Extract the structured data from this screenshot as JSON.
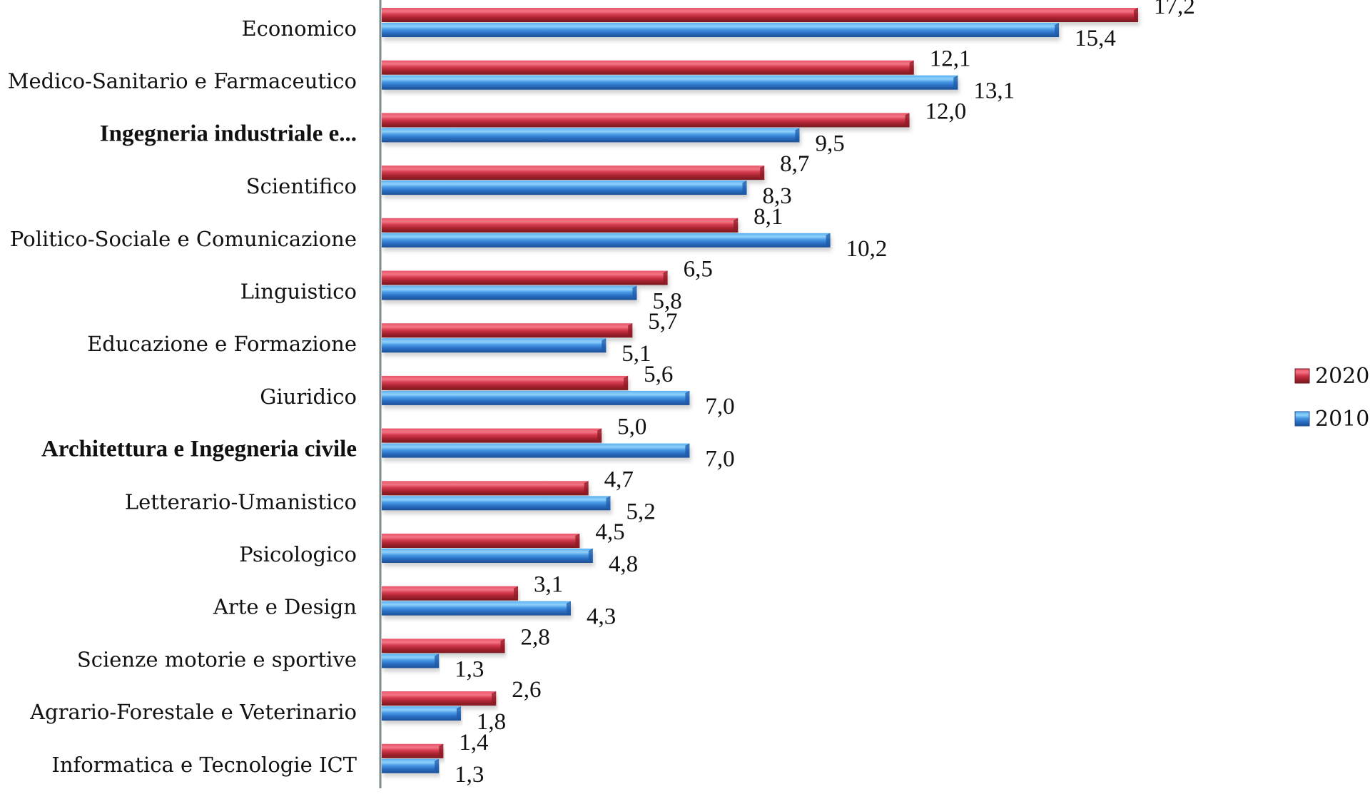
{
  "chart_data": {
    "type": "bar",
    "orientation": "horizontal",
    "title": "",
    "xlabel": "",
    "ylabel": "",
    "xlim": [
      0,
      17.2
    ],
    "grid": false,
    "legend_position": "right",
    "categories": [
      "Economico",
      "Medico-Sanitario e Farmaceutico",
      "Ingegneria industriale e...",
      "Scientifico",
      "Politico-Sociale e Comunicazione",
      "Linguistico",
      "Educazione e Formazione",
      "Giuridico",
      "Architettura e Ingegneria civile",
      "Letterario-Umanistico",
      "Psicologico",
      "Arte e Design",
      "Scienze motorie e sportive",
      "Agrario-Forestale e Veterinario",
      "Informatica e Tecnologie ICT"
    ],
    "bold_categories": [
      "Ingegneria industriale e...",
      "Architettura e Ingegneria civile"
    ],
    "series": [
      {
        "name": "2020",
        "color": "#c0283a",
        "values": [
          17.2,
          12.1,
          12.0,
          8.7,
          8.1,
          6.5,
          5.7,
          5.6,
          5.0,
          4.7,
          4.5,
          3.1,
          2.8,
          2.6,
          1.4
        ],
        "labels": [
          "17,2",
          "12,1",
          "12,0",
          "8,7",
          "8,1",
          "6,5",
          "5,7",
          "5,6",
          "5,0",
          "4,7",
          "4,5",
          "3,1",
          "2,8",
          "2,6",
          "1,4"
        ]
      },
      {
        "name": "2010",
        "color": "#2f7fd6",
        "values": [
          15.4,
          13.1,
          9.5,
          8.3,
          10.2,
          5.8,
          5.1,
          7.0,
          7.0,
          5.2,
          4.8,
          4.3,
          1.3,
          1.8,
          1.3
        ],
        "labels": [
          "15,4",
          "13,1",
          "9,5",
          "8,3",
          "10,2",
          "5,8",
          "5,1",
          "7,0",
          "7,0",
          "5,2",
          "4,8",
          "4,3",
          "1,3",
          "1,8",
          "1,3"
        ]
      }
    ]
  }
}
